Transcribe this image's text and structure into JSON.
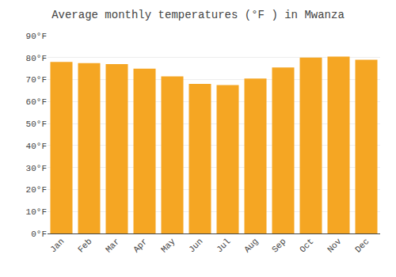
{
  "chart_data": {
    "type": "bar",
    "title": "Average monthly temperatures (°F ) in Mwanza",
    "categories": [
      "Jan",
      "Feb",
      "Mar",
      "Apr",
      "May",
      "Jun",
      "Jul",
      "Aug",
      "Sep",
      "Oct",
      "Nov",
      "Dec"
    ],
    "values": [
      78,
      77.5,
      77,
      75,
      71.5,
      68,
      67.5,
      70.5,
      75.5,
      80,
      80.5,
      79
    ],
    "color": "#F5A623",
    "ylim": [
      0,
      90
    ],
    "yticks": [
      {
        "value": 0,
        "label": "0°F"
      },
      {
        "value": 10,
        "label": "10°F"
      },
      {
        "value": 20,
        "label": "20°F"
      },
      {
        "value": 30,
        "label": "30°F"
      },
      {
        "value": 40,
        "label": "40°F"
      },
      {
        "value": 50,
        "label": "50°F"
      },
      {
        "value": 60,
        "label": "60°F"
      },
      {
        "value": 70,
        "label": "70°F"
      },
      {
        "value": 80,
        "label": "80°F"
      },
      {
        "value": 90,
        "label": "90°F"
      }
    ],
    "grid": true
  }
}
